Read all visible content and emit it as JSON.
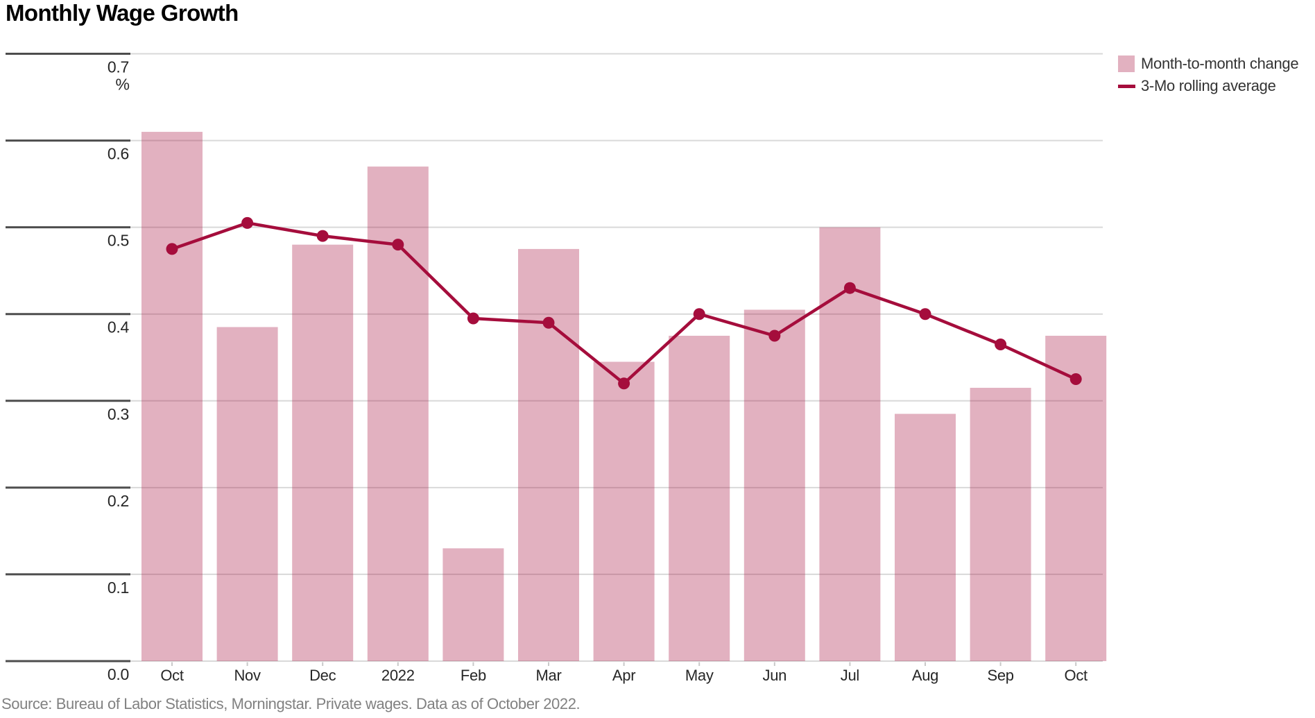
{
  "title": "Monthly Wage Growth",
  "unit_label": "%",
  "source": "Source: Bureau of Labor Statistics, Morningstar. Private wages. Data as of October 2022.",
  "legend": {
    "bar_label": "Month-to-month change",
    "line_label": "3-Mo rolling average"
  },
  "colors": {
    "bar": "#a50d3c",
    "bar_opacity": 0.32,
    "line": "#a50d3c",
    "grid_light": "#d9d9d9",
    "grid_dark": "#4d4d4d",
    "tick": "#c9c9c9",
    "axis_text": "#262626",
    "source_text": "#818181"
  },
  "chart_data": {
    "type": "bar",
    "title": "Monthly Wage Growth",
    "ylabel": "%",
    "ylim": [
      0,
      0.7
    ],
    "yticks": [
      0.0,
      0.1,
      0.2,
      0.3,
      0.4,
      0.5,
      0.6,
      0.7
    ],
    "grid": true,
    "legend_position": "top-right",
    "categories": [
      "Oct",
      "Nov",
      "Dec",
      "2022",
      "Feb",
      "Mar",
      "Apr",
      "May",
      "Jun",
      "Jul",
      "Aug",
      "Sep",
      "Oct"
    ],
    "series": [
      {
        "name": "Month-to-month change",
        "type": "bar",
        "values": [
          0.61,
          0.385,
          0.48,
          0.57,
          0.13,
          0.475,
          0.345,
          0.375,
          0.405,
          0.5,
          0.285,
          0.315,
          0.375
        ]
      },
      {
        "name": "3-Mo rolling average",
        "type": "line",
        "values": [
          0.475,
          0.505,
          0.49,
          0.48,
          0.395,
          0.39,
          0.32,
          0.4,
          0.375,
          0.43,
          0.4,
          0.365,
          0.325
        ]
      }
    ]
  }
}
